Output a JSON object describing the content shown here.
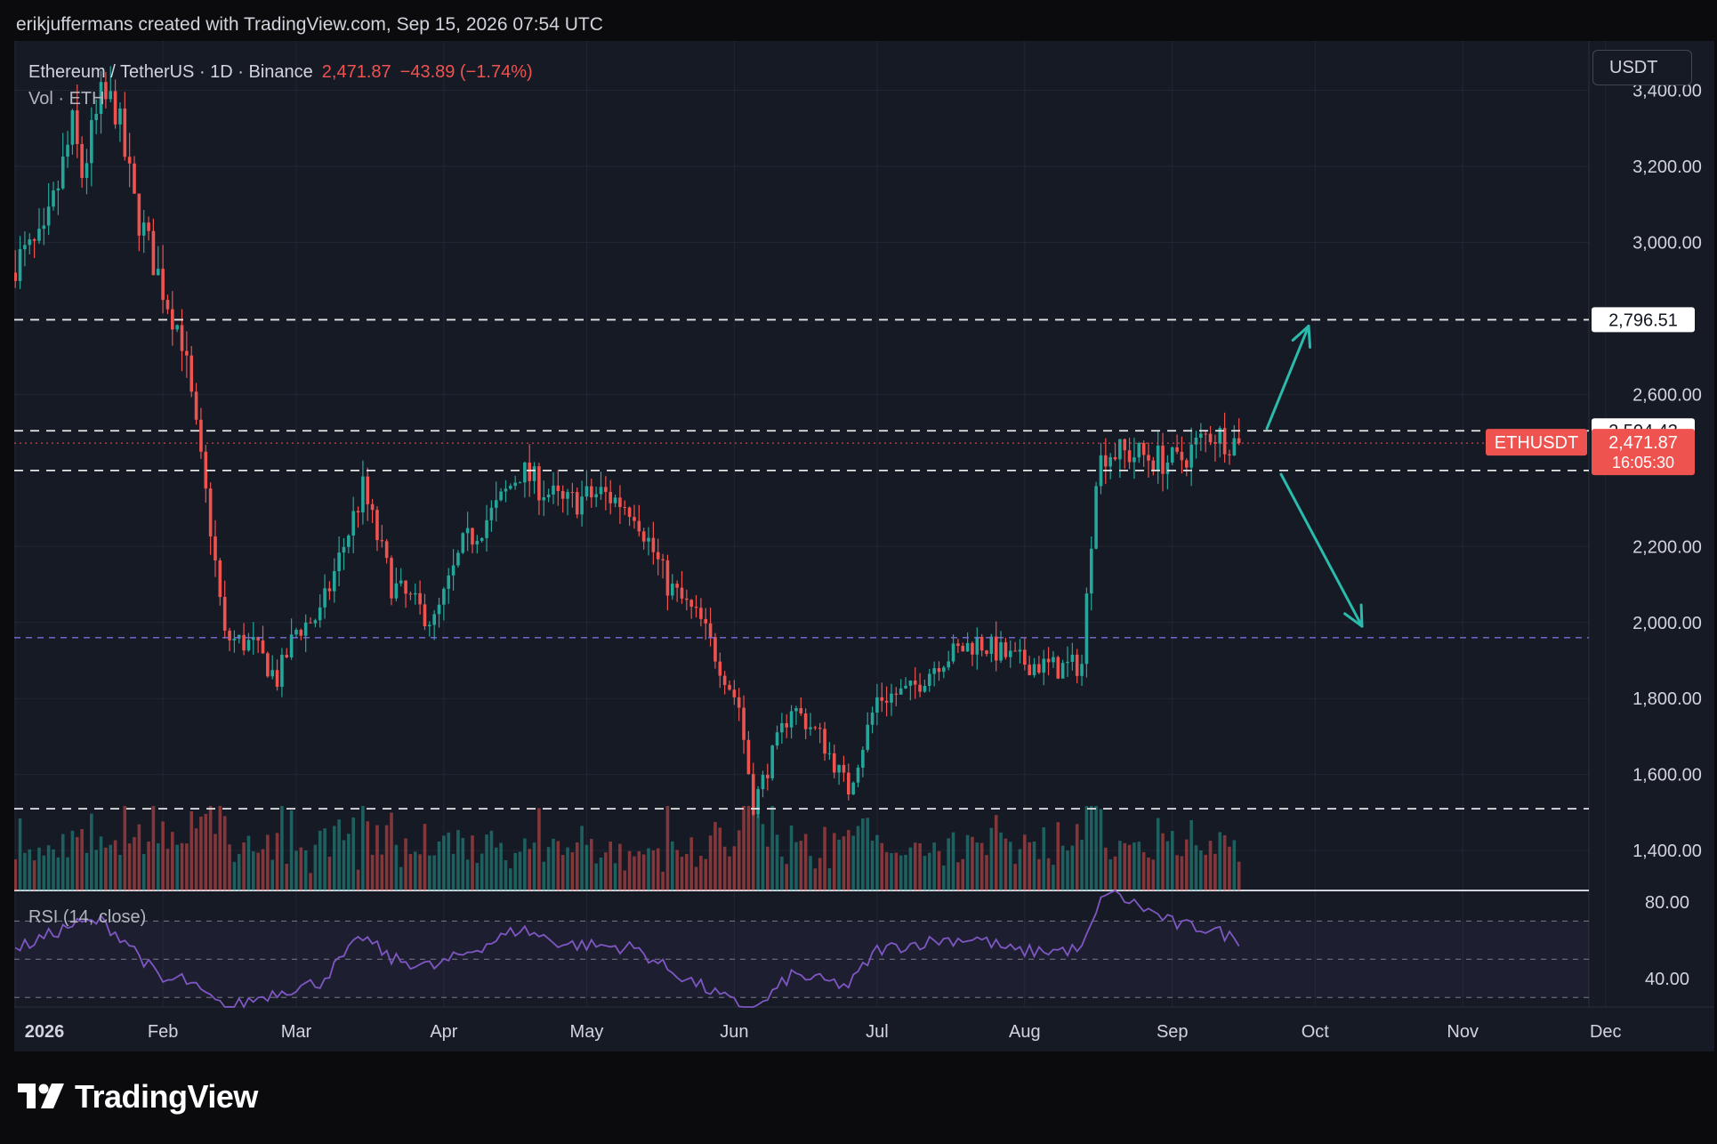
{
  "header": {
    "attribution": "erikjuffermans created with TradingView.com, Sep 15, 2026 07:54 UTC"
  },
  "legend": {
    "symbol": "Ethereum / TetherUS · 1D · Binance",
    "price": "2,471.87",
    "change": "−43.89 (−1.74%)",
    "volume_label": "Vol · ETH",
    "rsi_label": "RSI (14, close)"
  },
  "currency_button": "USDT",
  "brand": "TradingView",
  "colors": {
    "up": "#26a69a",
    "down": "#ef5350",
    "rsi": "#7e57c2",
    "accent_line": "#2bbbad",
    "level_purple": "#7b6fd6"
  },
  "chart_data": {
    "type": "candlestick",
    "symbol": "ETHUSDT",
    "price_axis": {
      "ticks": [
        "3,400.00",
        "3,200.00",
        "3,000.00",
        "2,600.00",
        "2,200.00",
        "2,000.00",
        "1,800.00",
        "1,600.00",
        "1,400.00"
      ],
      "range": [
        1295,
        3530
      ]
    },
    "rsi_axis": {
      "ticks": [
        "80.00",
        "40.00"
      ],
      "range": [
        25,
        86
      ],
      "bands": [
        70,
        50,
        30
      ]
    },
    "x_axis": {
      "ticks": [
        "2026",
        "Feb",
        "Mar",
        "Apr",
        "May",
        "Jun",
        "Jul",
        "Aug",
        "Sep",
        "Oct",
        "Nov",
        "Dec"
      ]
    },
    "series_anchor_closes": [
      [
        "2026-01-01",
        2950
      ],
      [
        "2026-01-07",
        3000
      ],
      [
        "2026-01-10",
        3150
      ],
      [
        "2026-01-13",
        3300
      ],
      [
        "2026-01-15",
        3180
      ],
      [
        "2026-01-19",
        3370
      ],
      [
        "2026-01-22",
        3360
      ],
      [
        "2026-01-26",
        3100
      ],
      [
        "2026-01-29",
        2990
      ],
      [
        "2026-02-01",
        2880
      ],
      [
        "2026-02-05",
        2750
      ],
      [
        "2026-02-08",
        2500
      ],
      [
        "2026-02-11",
        2250
      ],
      [
        "2026-02-14",
        1960
      ],
      [
        "2026-02-20",
        1940
      ],
      [
        "2026-02-25",
        1850
      ],
      [
        "2026-03-01",
        1980
      ],
      [
        "2026-03-06",
        2020
      ],
      [
        "2026-03-15",
        2350
      ],
      [
        "2026-03-21",
        2100
      ],
      [
        "2026-03-30",
        2000
      ],
      [
        "2026-04-05",
        2200
      ],
      [
        "2026-04-12",
        2300
      ],
      [
        "2026-04-17",
        2400
      ],
      [
        "2026-04-26",
        2310
      ],
      [
        "2026-05-04",
        2340
      ],
      [
        "2026-05-11",
        2300
      ],
      [
        "2026-05-18",
        2100
      ],
      [
        "2026-05-25",
        2000
      ],
      [
        "2026-06-02",
        1780
      ],
      [
        "2026-06-05",
        1520
      ],
      [
        "2026-06-09",
        1650
      ],
      [
        "2026-06-13",
        1780
      ],
      [
        "2026-06-19",
        1700
      ],
      [
        "2026-06-25",
        1560
      ],
      [
        "2026-07-01",
        1800
      ],
      [
        "2026-07-08",
        1820
      ],
      [
        "2026-07-14",
        1900
      ],
      [
        "2026-07-22",
        1950
      ],
      [
        "2026-07-30",
        1900
      ],
      [
        "2026-08-08",
        1880
      ],
      [
        "2026-08-13",
        1890
      ],
      [
        "2026-08-16",
        2400
      ],
      [
        "2026-08-18",
        2450
      ],
      [
        "2026-08-25",
        2440
      ],
      [
        "2026-09-02",
        2420
      ],
      [
        "2026-09-09",
        2500
      ],
      [
        "2026-09-15",
        2471.87
      ]
    ],
    "rsi_anchors": [
      [
        "2026-01-01",
        55
      ],
      [
        "2026-01-13",
        68
      ],
      [
        "2026-01-19",
        70
      ],
      [
        "2026-01-25",
        58
      ],
      [
        "2026-02-01",
        38
      ],
      [
        "2026-02-05",
        40
      ],
      [
        "2026-02-14",
        24
      ],
      [
        "2026-02-25",
        33
      ],
      [
        "2026-03-06",
        38
      ],
      [
        "2026-03-15",
        62
      ],
      [
        "2026-03-21",
        50
      ],
      [
        "2026-03-30",
        46
      ],
      [
        "2026-04-10",
        58
      ],
      [
        "2026-04-17",
        66
      ],
      [
        "2026-04-26",
        58
      ],
      [
        "2026-05-04",
        57
      ],
      [
        "2026-05-11",
        56
      ],
      [
        "2026-05-18",
        45
      ],
      [
        "2026-05-25",
        36
      ],
      [
        "2026-06-05",
        22
      ],
      [
        "2026-06-13",
        42
      ],
      [
        "2026-06-25",
        36
      ],
      [
        "2026-07-01",
        55
      ],
      [
        "2026-07-14",
        60
      ],
      [
        "2026-07-22",
        61
      ],
      [
        "2026-07-30",
        54
      ],
      [
        "2026-08-13",
        55
      ],
      [
        "2026-08-18",
        86
      ],
      [
        "2026-08-25",
        78
      ],
      [
        "2026-09-02",
        68
      ],
      [
        "2026-09-09",
        66
      ],
      [
        "2026-09-15",
        60
      ]
    ],
    "horizontal_levels": [
      {
        "price": 2796.51,
        "label": "2,796.51",
        "style": "white-dashed"
      },
      {
        "price": 2504.43,
        "label": "2,504.43",
        "style": "white-dashed"
      },
      {
        "price": 2400,
        "style": "white-dashed"
      },
      {
        "price": 1960,
        "style": "purple-dashed"
      },
      {
        "price": 1510,
        "style": "white-dashed"
      }
    ],
    "last_price": {
      "symbol_label": "ETHUSDT",
      "price": "2,471.87",
      "countdown": "16:05:30",
      "value": 2471.87
    },
    "annotations": [
      {
        "type": "arrow",
        "direction": "up",
        "from_price": 2510,
        "to_price": 2780
      },
      {
        "type": "arrow",
        "direction": "down",
        "from_price": 2390,
        "to_price": 1990
      }
    ]
  }
}
